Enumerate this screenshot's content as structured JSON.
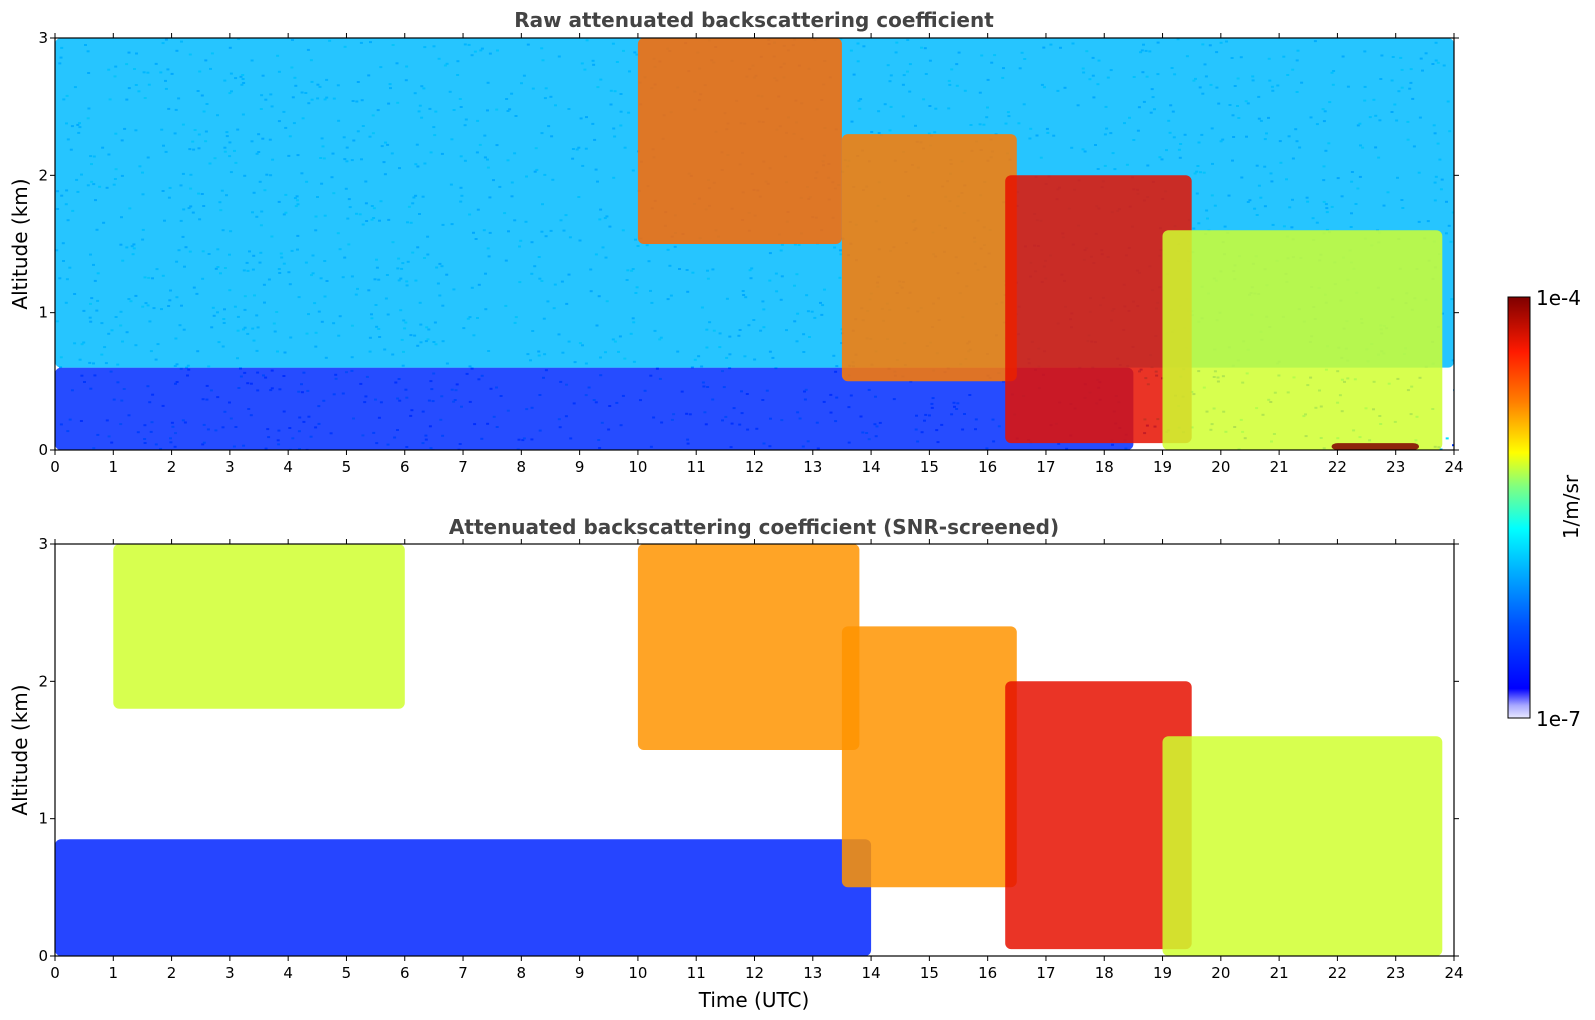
{
  "chart_data": [
    {
      "type": "heatmap",
      "title": "Raw attenuated backscattering coefficient",
      "xlabel": "",
      "ylabel": "Altitude (km)",
      "xlim": [
        0,
        24
      ],
      "ylim": [
        0,
        3
      ],
      "x_ticks": [
        "0",
        "1",
        "2",
        "3",
        "4",
        "5",
        "6",
        "7",
        "8",
        "9",
        "10",
        "11",
        "12",
        "13",
        "14",
        "15",
        "16",
        "17",
        "18",
        "19",
        "20",
        "21",
        "22",
        "23",
        "24"
      ],
      "y_ticks": [
        "0",
        "1",
        "2",
        "3"
      ],
      "features": [
        {
          "feature": "near-surface aerosol layer",
          "time": [
            0,
            18.5
          ],
          "altitude": [
            0,
            0.6
          ],
          "level": 0.1
        },
        {
          "feature": "noisy background",
          "time": [
            0,
            24
          ],
          "altitude": [
            0.6,
            3
          ],
          "level": 0.35
        },
        {
          "feature": "fall streaks",
          "time": [
            10,
            13.5
          ],
          "altitude": [
            1.5,
            3
          ],
          "level": 0.8
        },
        {
          "feature": "cloud layer",
          "time": [
            13.5,
            16.5
          ],
          "altitude": [
            0.5,
            2.3
          ],
          "level": 0.78
        },
        {
          "feature": "descending cloud layer",
          "time": [
            16.3,
            19.5
          ],
          "altitude": [
            0.05,
            2.0
          ],
          "level": 0.92
        },
        {
          "feature": "low cloud",
          "time": [
            19,
            23.8
          ],
          "altitude": [
            0,
            1.6
          ],
          "level": 0.6
        },
        {
          "feature": "surface fog",
          "time": [
            21.9,
            23.4
          ],
          "altitude": [
            0,
            0.05
          ],
          "level": 1.0
        }
      ]
    },
    {
      "type": "heatmap",
      "title": "Attenuated backscattering coefficient (SNR-screened)",
      "xlabel": "Time (UTC)",
      "ylabel": "Altitude (km)",
      "xlim": [
        0,
        24
      ],
      "ylim": [
        0,
        3
      ],
      "x_ticks": [
        "0",
        "1",
        "2",
        "3",
        "4",
        "5",
        "6",
        "7",
        "8",
        "9",
        "10",
        "11",
        "12",
        "13",
        "14",
        "15",
        "16",
        "17",
        "18",
        "19",
        "20",
        "21",
        "22",
        "23",
        "24"
      ],
      "y_ticks": [
        "0",
        "1",
        "2",
        "3"
      ],
      "features": [
        {
          "feature": "boundary layer aerosol",
          "time": [
            0,
            14
          ],
          "altitude": [
            0,
            0.85
          ],
          "level": 0.08
        },
        {
          "feature": "fall streaks",
          "time": [
            1,
            6
          ],
          "altitude": [
            1.8,
            3
          ],
          "level": 0.6
        },
        {
          "feature": "fall streaks",
          "time": [
            10,
            13.8
          ],
          "altitude": [
            1.5,
            3
          ],
          "level": 0.75
        },
        {
          "feature": "cloud layer",
          "time": [
            13.5,
            16.5
          ],
          "altitude": [
            0.5,
            2.4
          ],
          "level": 0.75
        },
        {
          "feature": "descending cloud layer",
          "time": [
            16.3,
            19.5
          ],
          "altitude": [
            0.05,
            2.0
          ],
          "level": 0.92
        },
        {
          "feature": "low cloud",
          "time": [
            19,
            23.8
          ],
          "altitude": [
            0,
            1.6
          ],
          "level": 0.6
        }
      ]
    }
  ],
  "colorbar": {
    "label": "1/m/sr",
    "max_label": "1e-4",
    "min_label": "1e-7",
    "scale": "log",
    "range": [
      1e-07,
      0.0001
    ],
    "colormap": "jet",
    "colors": [
      "#00007f",
      "#0000ff",
      "#007fff",
      "#00ffff",
      "#7fff7f",
      "#ffff00",
      "#ff7f00",
      "#ff0000",
      "#7f0000"
    ]
  }
}
